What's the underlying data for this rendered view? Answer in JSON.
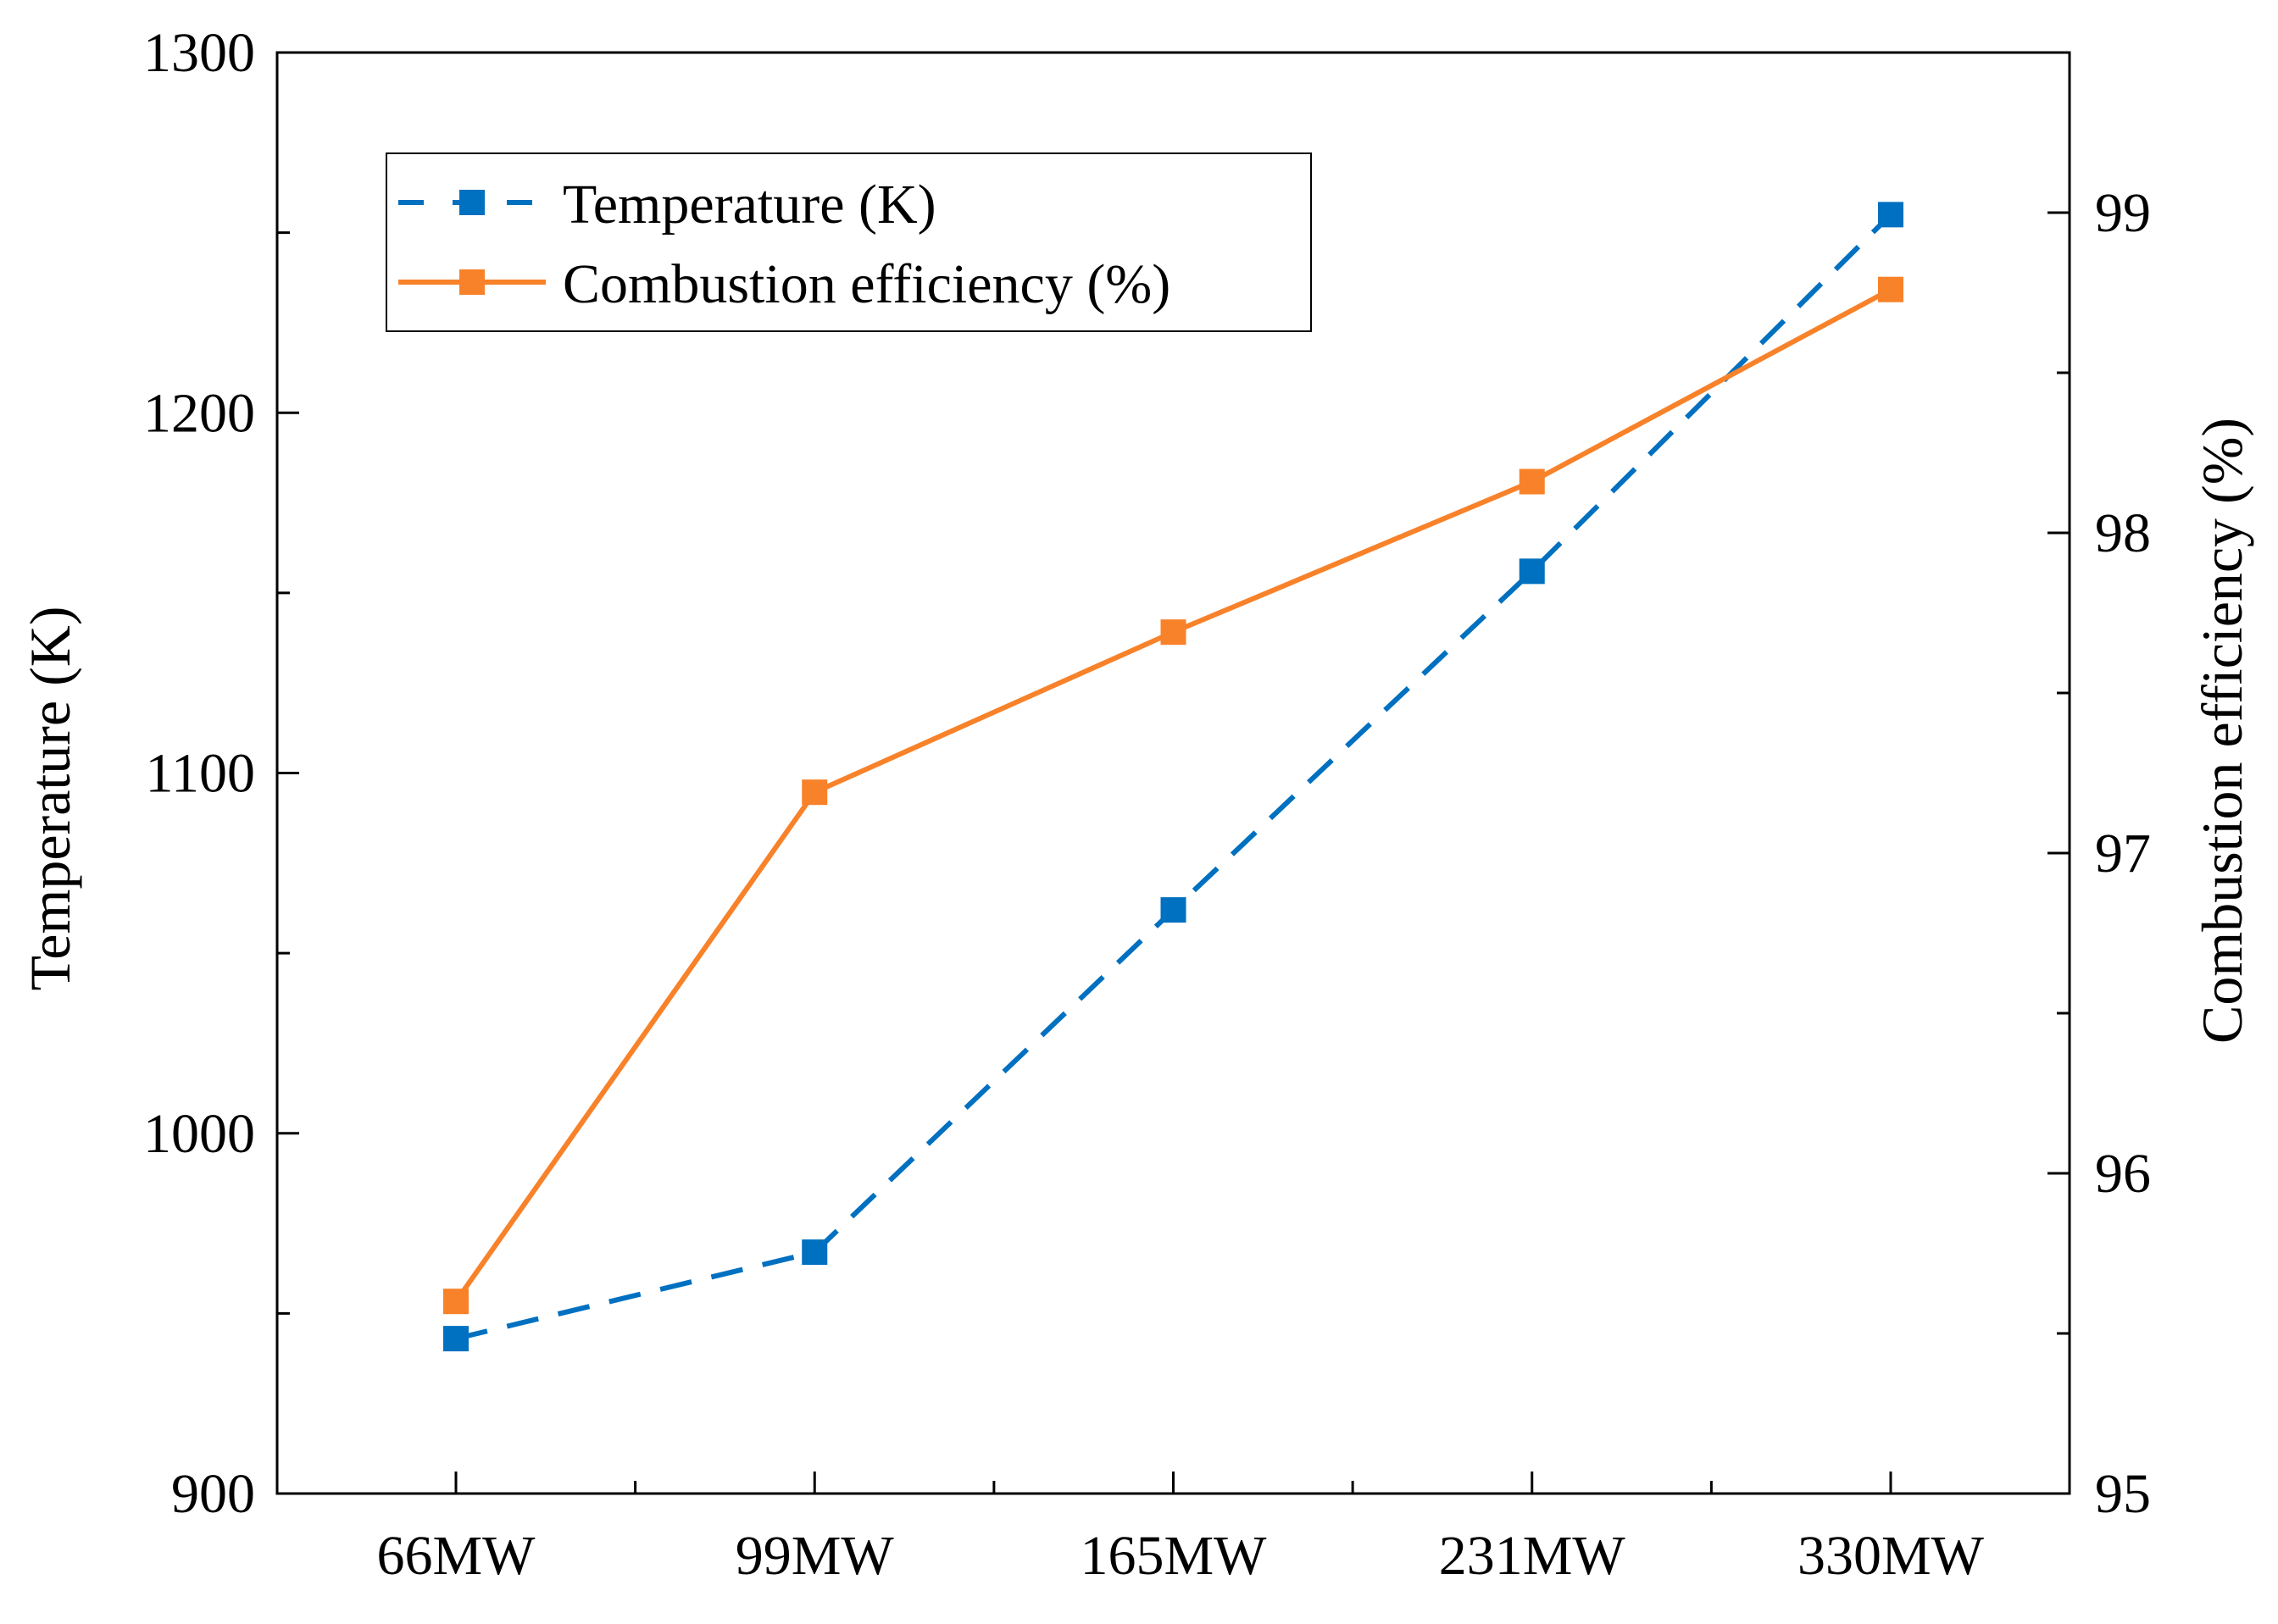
{
  "chart_data": {
    "type": "line",
    "categories": [
      "66MW",
      "99MW",
      "165MW",
      "231MW",
      "330MW"
    ],
    "series": [
      {
        "name": "Temperature (K)",
        "axis": "left",
        "color": "#0070C0",
        "line_style": "dashed",
        "marker": "square",
        "values": [
          943,
          967,
          1062,
          1156,
          1255
        ]
      },
      {
        "name": "Combustion efficiency (%)",
        "axis": "right",
        "color": "#F8822A",
        "line_style": "solid",
        "marker": "square",
        "values": [
          95.6,
          97.19,
          97.69,
          98.16,
          98.76
        ]
      }
    ],
    "y_left": {
      "label": "Temperature (K)",
      "range": [
        900,
        1300
      ],
      "major_ticks": [
        "900",
        "1000",
        "1100",
        "1200",
        "1300"
      ],
      "minor_step": 50
    },
    "y_right": {
      "label": "Combustion efficiency (%)",
      "range": [
        95,
        99.5
      ],
      "major_ticks": [
        "95",
        "96",
        "97",
        "98",
        "99"
      ],
      "minor_step": 0.5
    },
    "xlabel": "",
    "grid": false,
    "legend_position": "top-left"
  }
}
